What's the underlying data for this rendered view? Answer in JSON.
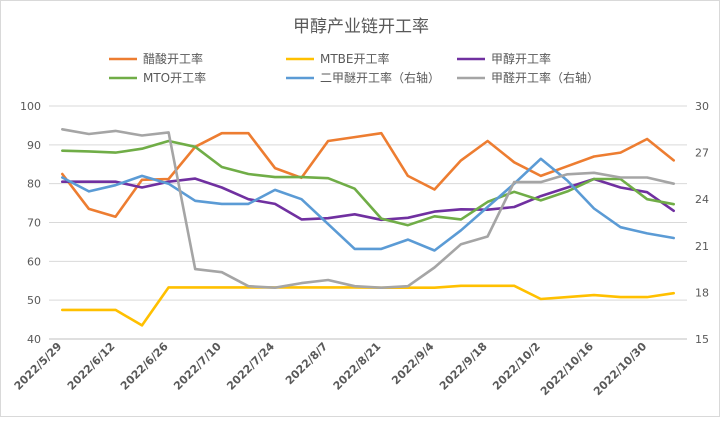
{
  "chart_data": {
    "type": "line",
    "title": "甲醇产业链开工率",
    "x": [
      "2022/5/29",
      "2022/6/5",
      "2022/6/12",
      "2022/6/19",
      "2022/6/26",
      "2022/7/3",
      "2022/7/10",
      "2022/7/17",
      "2022/7/24",
      "2022/7/31",
      "2022/8/7",
      "2022/8/14",
      "2022/8/21",
      "2022/8/28",
      "2022/9/4",
      "2022/9/11",
      "2022/9/18",
      "2022/9/25",
      "2022/10/2",
      "2022/10/9",
      "2022/10/16",
      "2022/10/23",
      "2022/10/30",
      "2022/11/6"
    ],
    "x_tick_labels": [
      "2022/5/29",
      "2022/6/12",
      "2022/6/26",
      "2022/7/10",
      "2022/7/24",
      "2022/8/7",
      "2022/8/21",
      "2022/9/4",
      "2022/9/18",
      "2022/10/2",
      "2022/10/16",
      "2022/10/30"
    ],
    "y_left": {
      "min": 40,
      "max": 100,
      "step": 10
    },
    "y_right": {
      "min": 15,
      "max": 30,
      "step": 3
    },
    "legend_position": "top",
    "series": [
      {
        "name": "醋酸开工率",
        "axis": "left",
        "color": "#ED7D31",
        "values": [
          82.5,
          73.5,
          71.5,
          81,
          81.2,
          89.5,
          93,
          93,
          84,
          81.5,
          91,
          92,
          93,
          82,
          78.5,
          86,
          91,
          85.5,
          82,
          84.5,
          87,
          88,
          91.5,
          86
        ]
      },
      {
        "name": "MTBE开工率",
        "axis": "left",
        "color": "#FFC000",
        "values": [
          47.5,
          47.5,
          47.5,
          43.5,
          53.3,
          53.3,
          53.3,
          53.3,
          53.3,
          53.3,
          53.3,
          53.3,
          53.2,
          53.2,
          53.2,
          53.7,
          53.7,
          53.7,
          50.3,
          50.8,
          51.3,
          50.8,
          50.8,
          51.8
        ]
      },
      {
        "name": "甲醇开工率",
        "axis": "left",
        "color": "#7030A0",
        "values": [
          80.5,
          80.5,
          80.5,
          79,
          80.5,
          81.3,
          79,
          76,
          74.8,
          70.8,
          71.1,
          72.1,
          70.7,
          71.2,
          72.8,
          73.4,
          73.3,
          74,
          76.8,
          79,
          81.2,
          79,
          77.8,
          73
        ]
      },
      {
        "name": "MTO开工率",
        "axis": "left",
        "color": "#70AD47",
        "values": [
          88.5,
          88.3,
          88,
          89,
          91,
          89.5,
          84.3,
          82.5,
          81.7,
          81.7,
          81.4,
          78.7,
          71,
          69.3,
          71.6,
          70.8,
          75.3,
          77.9,
          75.7,
          78,
          81.2,
          81.2,
          76,
          74.7
        ]
      },
      {
        "name": "二甲醚开工率（右轴）",
        "axis": "right",
        "color": "#5B9BD5",
        "values": [
          25.4,
          24.5,
          24.9,
          25.5,
          25,
          23.9,
          23.7,
          23.7,
          24.6,
          24,
          22.4,
          20.8,
          20.8,
          21.4,
          20.7,
          22,
          23.5,
          25,
          26.6,
          25.2,
          23.4,
          22.2,
          21.8,
          21.5
        ]
      },
      {
        "name": "甲醛开工率（右轴）",
        "axis": "right",
        "color": "#A5A5A5",
        "values": [
          28.5,
          28.2,
          28.4,
          28.1,
          28.3,
          19.5,
          19.3,
          18.4,
          18.3,
          18.6,
          18.8,
          18.4,
          18.3,
          18.4,
          19.6,
          21.1,
          21.6,
          25.1,
          25.1,
          25.6,
          25.7,
          25.4,
          25.4,
          25
        ]
      }
    ]
  }
}
